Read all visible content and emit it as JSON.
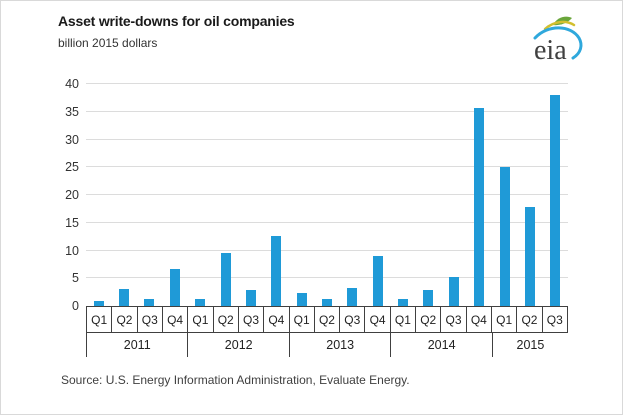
{
  "header": {
    "title": "Asset write-downs for oil companies",
    "subtitle": "billion 2015 dollars"
  },
  "logo": {
    "text": "eia"
  },
  "source": {
    "text": "Source:  U.S. Energy Information Administration, Evaluate Energy."
  },
  "colors": {
    "bar": "#1f9ad7",
    "gridline": "#dcdcdc",
    "axis": "#404040",
    "text": "#333333",
    "logo_green": "#6aa63b",
    "logo_yellow": "#d2bf2e",
    "logo_blue": "#2fa8dc",
    "logo_text": "#404040"
  },
  "chart_data": {
    "type": "bar",
    "title": "Asset write-downs for oil companies",
    "ylabel": "billion 2015 dollars",
    "xlabel": "",
    "ylim": [
      0,
      40
    ],
    "yticks": [
      0,
      5,
      10,
      15,
      20,
      25,
      30,
      35,
      40
    ],
    "grid": "horizontal",
    "legend": "none",
    "groups": [
      {
        "year": "2011",
        "quarters": [
          "Q1",
          "Q2",
          "Q3",
          "Q4"
        ],
        "values": [
          0.9,
          3.0,
          1.3,
          6.7
        ]
      },
      {
        "year": "2012",
        "quarters": [
          "Q1",
          "Q2",
          "Q3",
          "Q4"
        ],
        "values": [
          1.3,
          9.5,
          2.8,
          12.6
        ]
      },
      {
        "year": "2013",
        "quarters": [
          "Q1",
          "Q2",
          "Q3",
          "Q4"
        ],
        "values": [
          2.4,
          1.2,
          3.3,
          9.0
        ]
      },
      {
        "year": "2014",
        "quarters": [
          "Q1",
          "Q2",
          "Q3",
          "Q4"
        ],
        "values": [
          1.2,
          2.9,
          5.3,
          35.7
        ]
      },
      {
        "year": "2015",
        "quarters": [
          "Q1",
          "Q2",
          "Q3"
        ],
        "values": [
          25.1,
          17.9,
          38.1
        ]
      }
    ]
  }
}
